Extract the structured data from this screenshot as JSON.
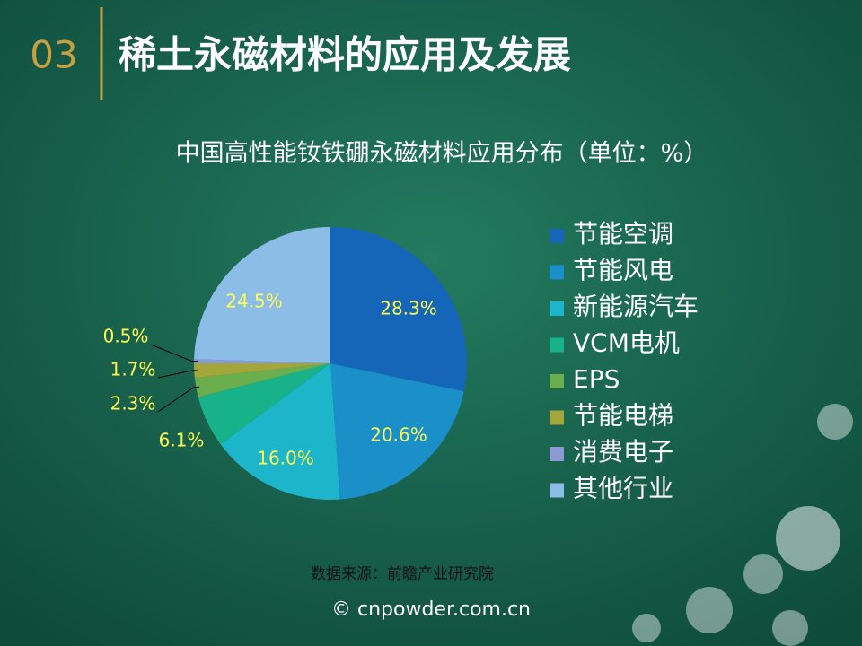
{
  "header": {
    "number": "03",
    "title": "稀土永磁材料的应用及发展"
  },
  "chart_data": {
    "type": "pie",
    "title": "中国高性能钕铁硼永磁材料应用分布（单位：%）",
    "categories": [
      "节能空调",
      "节能风电",
      "新能源汽车",
      "VCM电机",
      "EPS",
      "节能电梯",
      "消费电子",
      "其他行业"
    ],
    "values": [
      28.3,
      20.6,
      16.0,
      6.1,
      2.3,
      1.7,
      0.5,
      24.5
    ],
    "value_labels": [
      "28.3%",
      "20.6%",
      "16.0%",
      "6.1%",
      "2.3%",
      "1.7%",
      "0.5%",
      "24.5%"
    ],
    "colors": [
      "#1565b8",
      "#1a8fc8",
      "#1db5c9",
      "#17b28a",
      "#6aae4e",
      "#a3a63a",
      "#8b9ad4",
      "#8cbde6"
    ],
    "legend": "right"
  },
  "source": "数据来源：前瞻产业研究院",
  "footer": "© cnpowder.com.cn"
}
